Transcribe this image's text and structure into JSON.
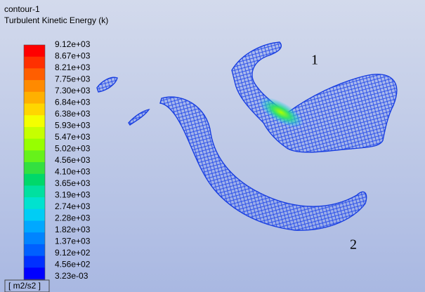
{
  "header": {
    "title": "contour-1",
    "variable": "Turbulent Kinetic Energy (k)"
  },
  "legend": {
    "labels": [
      "9.12e+03",
      "8.67e+03",
      "8.21e+03",
      "7.75e+03",
      "7.30e+03",
      "6.84e+03",
      "6.38e+03",
      "5.93e+03",
      "5.47e+03",
      "5.02e+03",
      "4.56e+03",
      "4.10e+03",
      "3.65e+03",
      "3.19e+03",
      "2.74e+03",
      "2.28e+03",
      "1.82e+03",
      "1.37e+03",
      "9.12e+02",
      "4.56e+02",
      "3.23e-03"
    ],
    "colors": [
      "#ff0000",
      "#ff3000",
      "#ff5e00",
      "#ff8a00",
      "#ffb000",
      "#ffd600",
      "#f4ff00",
      "#c6ff00",
      "#97ff00",
      "#66f21a",
      "#33e040",
      "#00d86a",
      "#00e0a0",
      "#00e2cf",
      "#00cdf5",
      "#00a8ff",
      "#0084ff",
      "#0060ff",
      "#0030ff",
      "#0000ff"
    ],
    "units": "[ m2/s2 ]"
  },
  "annotations": [
    "1",
    "2"
  ]
}
